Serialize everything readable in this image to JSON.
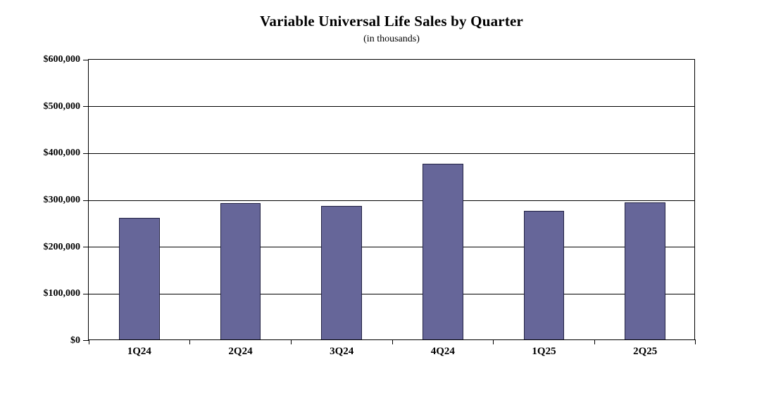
{
  "chart_data": {
    "type": "bar",
    "title": "Variable Universal Life Sales by Quarter",
    "subtitle": "(in thousands)",
    "categories": [
      "1Q24",
      "2Q24",
      "3Q24",
      "4Q24",
      "1Q25",
      "2Q25"
    ],
    "values": [
      260000,
      291000,
      285000,
      375000,
      274000,
      292000
    ],
    "ylim": [
      0,
      600000
    ],
    "ytick_step": 100000,
    "ytick_labels_bottom_up": [
      "$0",
      "$100,000",
      "$200,000",
      "$300,000",
      "$400,000",
      "$500,000",
      "$600,000"
    ],
    "xlabel": "",
    "ylabel": "",
    "grid": true,
    "legend_position": "none",
    "bar_color": "#666699",
    "bar_border_color": "#222244",
    "axis_color": "#000000",
    "gridline_color": "#000000",
    "background_color": "#ffffff",
    "bar_width_fraction": 0.4
  }
}
